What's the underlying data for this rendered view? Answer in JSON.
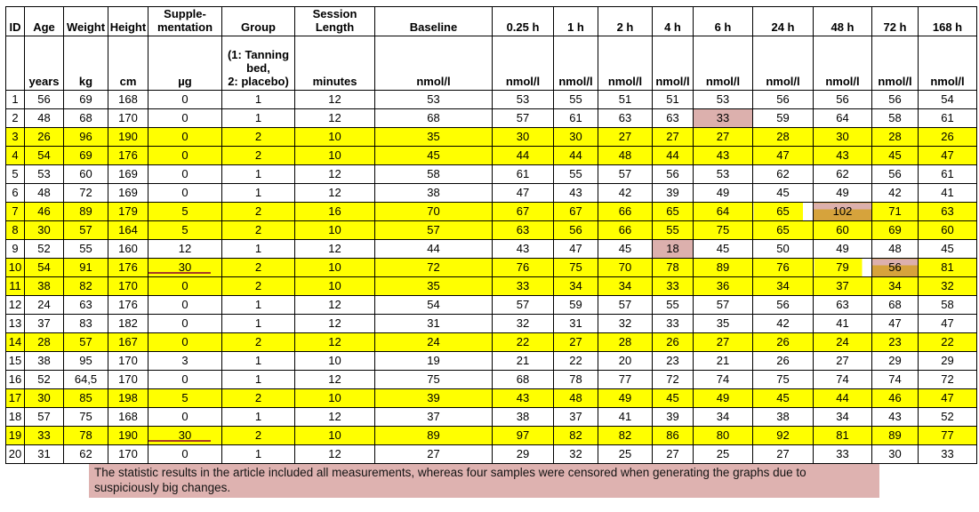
{
  "table": {
    "columns": [
      {
        "label": "ID",
        "unit": ""
      },
      {
        "label": "Age",
        "unit": "years"
      },
      {
        "label": "Weight",
        "unit": "kg"
      },
      {
        "label": "Height",
        "unit": "cm"
      },
      {
        "label": "Supple-\nmentation",
        "unit": "µg"
      },
      {
        "label": "Group",
        "unit": "(1: Tanning\nbed,\n2: placebo)"
      },
      {
        "label": "Session\nLength",
        "unit": "minutes"
      },
      {
        "label": "Baseline",
        "unit": "nmol/l"
      },
      {
        "label": "0.25 h",
        "unit": "nmol/l"
      },
      {
        "label": "1 h",
        "unit": "nmol/l"
      },
      {
        "label": "2 h",
        "unit": "nmol/l"
      },
      {
        "label": "4 h",
        "unit": "nmol/l"
      },
      {
        "label": "6 h",
        "unit": "nmol/l"
      },
      {
        "label": "24 h",
        "unit": "nmol/l"
      },
      {
        "label": "48 h",
        "unit": "nmol/l"
      },
      {
        "label": "72 h",
        "unit": "nmol/l"
      },
      {
        "label": "168 h",
        "unit": "nmol/l"
      }
    ],
    "rows": [
      [
        "1",
        "56",
        "69",
        "168",
        "0",
        "1",
        "12",
        "53",
        "53",
        "55",
        "51",
        "51",
        "53",
        "56",
        "56",
        "56",
        "54"
      ],
      [
        "2",
        "48",
        "68",
        "170",
        "0",
        "1",
        "12",
        "68",
        "57",
        "61",
        "63",
        "63",
        "33",
        "59",
        "64",
        "58",
        "61"
      ],
      [
        "3",
        "26",
        "96",
        "190",
        "0",
        "2",
        "10",
        "35",
        "30",
        "30",
        "27",
        "27",
        "27",
        "28",
        "30",
        "28",
        "26"
      ],
      [
        "4",
        "54",
        "69",
        "176",
        "0",
        "2",
        "10",
        "45",
        "44",
        "44",
        "48",
        "44",
        "43",
        "47",
        "43",
        "45",
        "47"
      ],
      [
        "5",
        "53",
        "60",
        "169",
        "0",
        "1",
        "12",
        "58",
        "61",
        "55",
        "57",
        "56",
        "53",
        "62",
        "62",
        "56",
        "61"
      ],
      [
        "6",
        "48",
        "72",
        "169",
        "0",
        "1",
        "12",
        "38",
        "47",
        "43",
        "42",
        "39",
        "49",
        "45",
        "49",
        "42",
        "41"
      ],
      [
        "7",
        "46",
        "89",
        "179",
        "5",
        "2",
        "16",
        "70",
        "67",
        "67",
        "66",
        "65",
        "64",
        "65",
        "102",
        "71",
        "63"
      ],
      [
        "8",
        "30",
        "57",
        "164",
        "5",
        "2",
        "10",
        "57",
        "63",
        "56",
        "66",
        "55",
        "75",
        "65",
        "60",
        "69",
        "60"
      ],
      [
        "9",
        "52",
        "55",
        "160",
        "12",
        "1",
        "12",
        "44",
        "43",
        "47",
        "45",
        "18",
        "45",
        "50",
        "49",
        "48",
        "45"
      ],
      [
        "10",
        "54",
        "91",
        "176",
        "30",
        "2",
        "10",
        "72",
        "76",
        "75",
        "70",
        "78",
        "89",
        "76",
        "79",
        "56",
        "81"
      ],
      [
        "11",
        "38",
        "82",
        "170",
        "0",
        "2",
        "10",
        "35",
        "33",
        "34",
        "34",
        "33",
        "36",
        "34",
        "37",
        "34",
        "32"
      ],
      [
        "12",
        "24",
        "63",
        "176",
        "0",
        "1",
        "12",
        "54",
        "57",
        "59",
        "57",
        "55",
        "57",
        "56",
        "63",
        "68",
        "58"
      ],
      [
        "13",
        "37",
        "83",
        "182",
        "0",
        "1",
        "12",
        "31",
        "32",
        "31",
        "32",
        "33",
        "35",
        "42",
        "41",
        "47",
        "47"
      ],
      [
        "14",
        "28",
        "57",
        "167",
        "0",
        "2",
        "12",
        "24",
        "22",
        "27",
        "28",
        "26",
        "27",
        "26",
        "24",
        "23",
        "22"
      ],
      [
        "15",
        "38",
        "95",
        "170",
        "3",
        "1",
        "10",
        "19",
        "21",
        "22",
        "20",
        "23",
        "21",
        "26",
        "27",
        "29",
        "29"
      ],
      [
        "16",
        "52",
        "64,5",
        "170",
        "0",
        "1",
        "12",
        "75",
        "68",
        "78",
        "77",
        "72",
        "74",
        "75",
        "74",
        "74",
        "72"
      ],
      [
        "17",
        "30",
        "85",
        "198",
        "5",
        "2",
        "10",
        "39",
        "43",
        "48",
        "49",
        "45",
        "49",
        "45",
        "44",
        "46",
        "47"
      ],
      [
        "18",
        "57",
        "75",
        "168",
        "0",
        "1",
        "12",
        "37",
        "38",
        "37",
        "41",
        "39",
        "34",
        "38",
        "34",
        "43",
        "52"
      ],
      [
        "19",
        "33",
        "78",
        "190",
        "30",
        "2",
        "10",
        "89",
        "97",
        "82",
        "82",
        "86",
        "80",
        "92",
        "81",
        "89",
        "77"
      ],
      [
        "20",
        "31",
        "62",
        "170",
        "0",
        "1",
        "12",
        "27",
        "29",
        "32",
        "25",
        "27",
        "25",
        "27",
        "33",
        "30",
        "33"
      ]
    ]
  },
  "highlights": {
    "yellow_row_ids": [
      3,
      4,
      7,
      8,
      10,
      11,
      14,
      17,
      19
    ],
    "censored_pink_cells": [
      {
        "row_id": 2,
        "col": 12,
        "value": "33"
      },
      {
        "row_id": 9,
        "col": 11,
        "value": "18"
      }
    ],
    "censored_on_yellow_cells": [
      {
        "row_id": 7,
        "col": 14,
        "value": "102"
      },
      {
        "row_id": 10,
        "col": 15,
        "value": "56"
      }
    ],
    "partial_yellow_cells": [
      {
        "row_id": 7,
        "col": 13
      },
      {
        "row_id": 10,
        "col": 14
      }
    ],
    "red_underline_row_ids": [
      10,
      19
    ]
  },
  "colors": {
    "row-highlight": "#ffff00",
    "censored-pink": "#dcb0ad",
    "censored-gold": "#d6a33c",
    "red-underline": "#a83a28",
    "note-bg": "#deb2b0"
  },
  "note": {
    "text": "The statistic results in the article included all measurements, whereas four samples were censored when generating the graphs due to suspiciously big changes."
  }
}
